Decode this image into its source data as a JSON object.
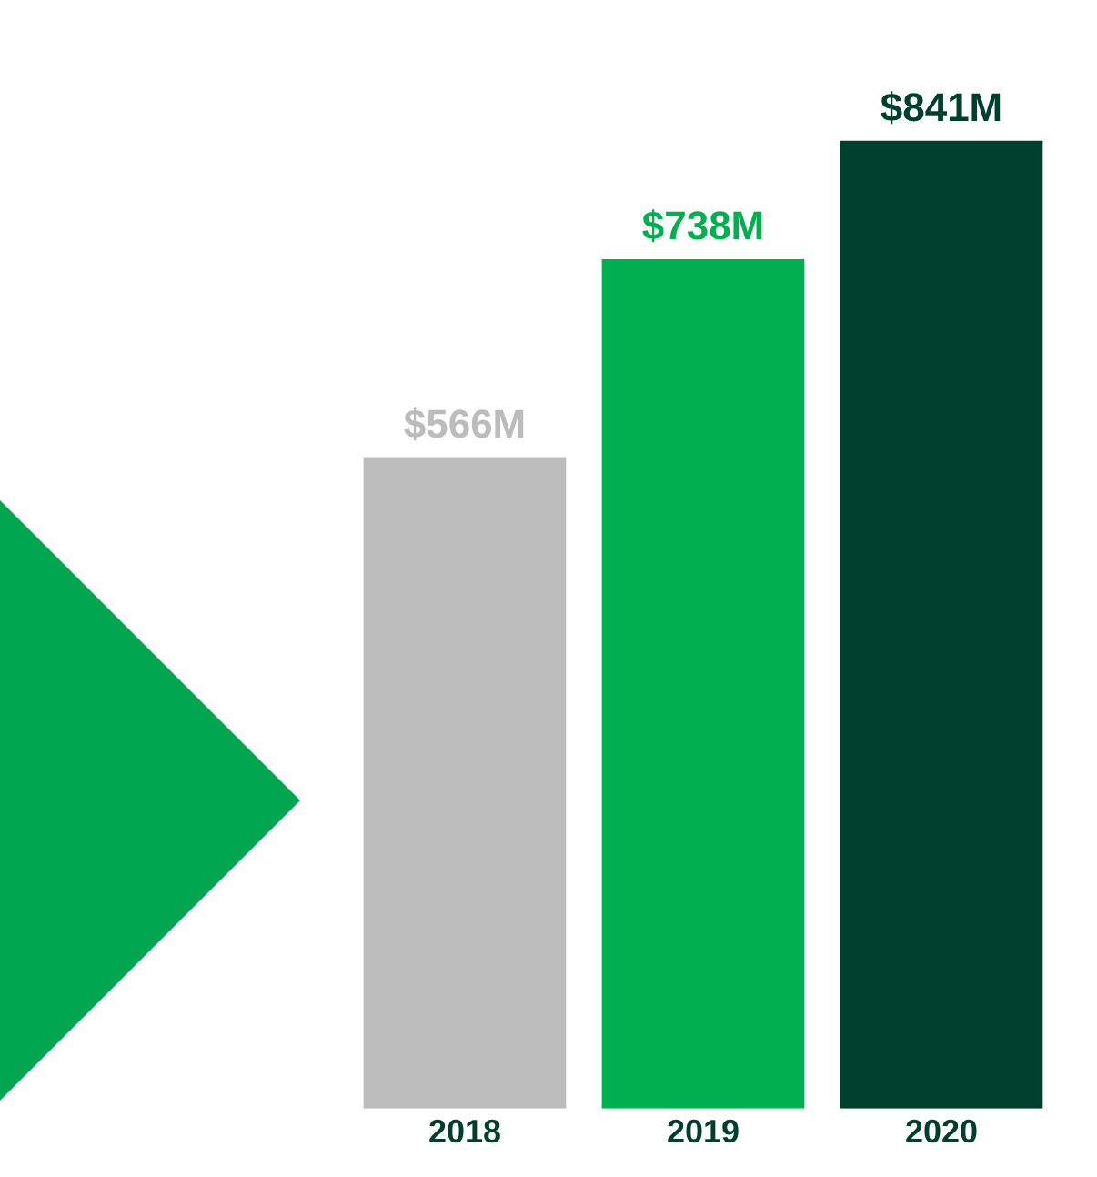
{
  "chart_data": {
    "type": "bar",
    "categories": [
      "2018",
      "2019",
      "2020"
    ],
    "values": [
      566,
      738,
      841
    ],
    "colors": [
      "#bcbcbc",
      "#00b050",
      "#003f2b"
    ],
    "value_labels": [
      "$566M",
      "$738M",
      "$841M"
    ],
    "tick_labels": "x",
    "grid": false,
    "legend": false
  }
}
